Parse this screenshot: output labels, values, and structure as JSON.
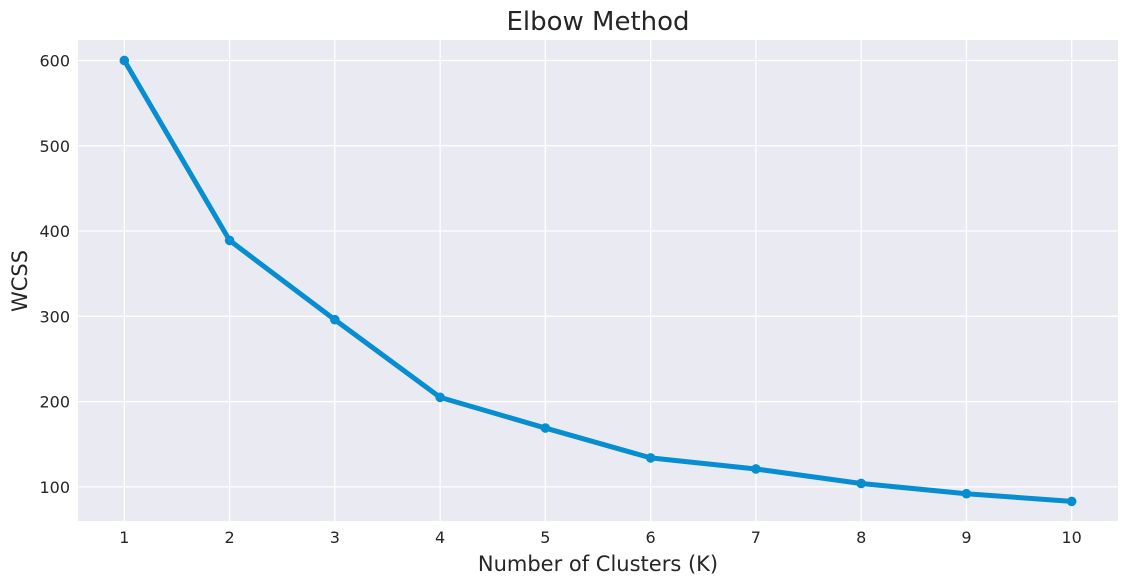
{
  "chart_data": {
    "type": "line",
    "title": "Elbow Method",
    "xlabel": "Number of Clusters (K)",
    "ylabel": "WCSS",
    "x": [
      1,
      2,
      3,
      4,
      5,
      6,
      7,
      8,
      9,
      10
    ],
    "series": [
      {
        "name": "WCSS",
        "values": [
          600,
          389,
          296,
          205,
          169,
          134,
          121,
          104,
          92,
          83
        ],
        "color": "#068ed1"
      }
    ],
    "xticks": [
      1,
      2,
      3,
      4,
      5,
      6,
      7,
      8,
      9,
      10
    ],
    "yticks": [
      100,
      200,
      300,
      400,
      500,
      600
    ],
    "xlim": [
      0.56,
      10.44
    ],
    "ylim": [
      60,
      624
    ],
    "grid": true,
    "colors": {
      "plot_background": "#eaeaf2",
      "grid": "#ffffff",
      "text": "#262626"
    }
  }
}
